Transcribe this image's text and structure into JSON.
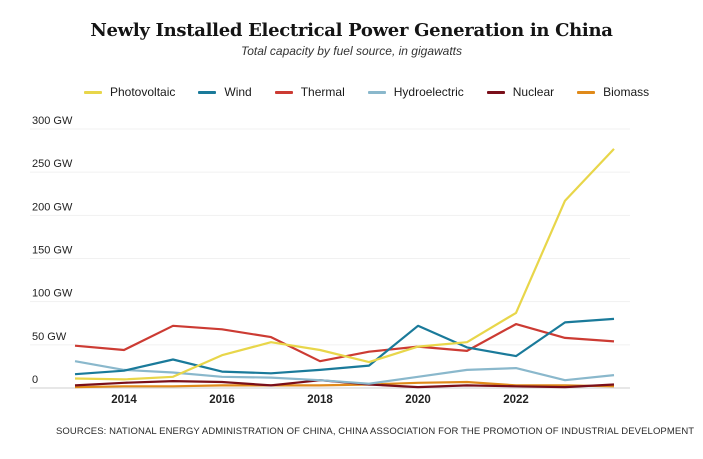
{
  "chart_data": {
    "type": "line",
    "title": "Newly Installed Electrical Power Generation in China",
    "subtitle": "Total capacity by fuel source, in gigawatts",
    "xlabel": "",
    "ylabel": "",
    "x": [
      2013,
      2014,
      2015,
      2016,
      2017,
      2018,
      2019,
      2020,
      2021,
      2022,
      2023,
      2024
    ],
    "xlim": [
      2013,
      2024
    ],
    "ylim": [
      0,
      300
    ],
    "y_ticks": [
      0,
      50,
      100,
      150,
      200,
      250,
      300
    ],
    "y_tick_labels": [
      "0",
      "50 GW",
      "100 GW",
      "150 GW",
      "200 GW",
      "250 GW",
      "300 GW"
    ],
    "x_ticks": [
      2014,
      2016,
      2018,
      2020,
      2022
    ],
    "x_tick_labels": [
      "2014",
      "2016",
      "2018",
      "2020",
      "2022"
    ],
    "grid": true,
    "legend_position": "top",
    "series": [
      {
        "name": "Photovoltaic",
        "color": "#e8d64a",
        "values": [
          11,
          10,
          13,
          38,
          53,
          44,
          30,
          48,
          53,
          87,
          217,
          277
        ]
      },
      {
        "name": "Wind",
        "color": "#1a7a9a",
        "values": [
          16,
          20,
          33,
          19,
          17,
          21,
          26,
          72,
          47,
          37,
          76,
          80
        ]
      },
      {
        "name": "Thermal",
        "color": "#cc3b33",
        "values": [
          49,
          44,
          72,
          68,
          59,
          31,
          42,
          48,
          43,
          74,
          58,
          54
        ]
      },
      {
        "name": "Hydroelectric",
        "color": "#8ab8cc",
        "values": [
          31,
          21,
          18,
          13,
          12,
          9,
          5,
          13,
          21,
          23,
          9,
          15
        ]
      },
      {
        "name": "Nuclear",
        "color": "#7a0f1a",
        "values": [
          3,
          6,
          8,
          7,
          3,
          9,
          4,
          1,
          3,
          2,
          1,
          4
        ]
      },
      {
        "name": "Biomass",
        "color": "#e08a1a",
        "values": [
          1,
          2,
          2,
          3,
          3,
          3,
          4,
          6,
          7,
          3,
          3,
          2
        ]
      }
    ]
  },
  "source": "SOURCES: NATIONAL ENERGY ADMINISTRATION OF CHINA, CHINA ASSOCIATION FOR THE PROMOTION OF INDUSTRIAL DEVELOPMENT"
}
